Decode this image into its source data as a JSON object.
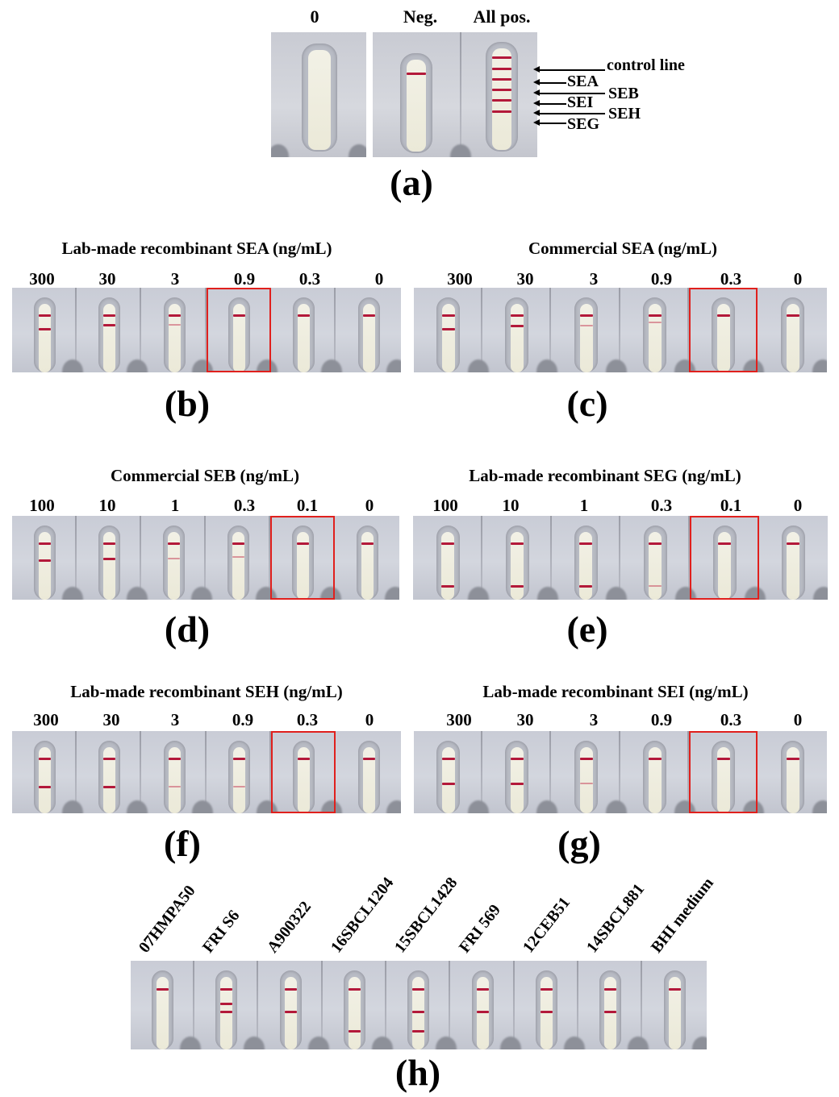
{
  "panel_a": {
    "letter": "(a)",
    "labels": [
      "0",
      "Neg.",
      "All pos."
    ],
    "annotations": {
      "control": "control line",
      "sea": "SEA",
      "seb": "SEB",
      "sei": "SEI",
      "seh": "SEH",
      "seg": "SEG"
    }
  },
  "panel_b": {
    "letter": "(b)",
    "title": "Lab-made recombinant SEA (ng/mL)",
    "concentrations": [
      "300",
      "30",
      "3",
      "0.9",
      "0.3",
      "0"
    ]
  },
  "panel_c": {
    "letter": "(c)",
    "title": "Commercial SEA (ng/mL)",
    "concentrations": [
      "300",
      "30",
      "3",
      "0.9",
      "0.3",
      "0"
    ]
  },
  "panel_d": {
    "letter": "(d)",
    "title": "Commercial SEB (ng/mL)",
    "concentrations": [
      "100",
      "10",
      "1",
      "0.3",
      "0.1",
      "0"
    ]
  },
  "panel_e": {
    "letter": "(e)",
    "title": "Lab-made recombinant SEG (ng/mL)",
    "concentrations": [
      "100",
      "10",
      "1",
      "0.3",
      "0.1",
      "0"
    ]
  },
  "panel_f": {
    "letter": "(f)",
    "title": "Lab-made recombinant SEH (ng/mL)",
    "concentrations": [
      "300",
      "30",
      "3",
      "0.9",
      "0.3",
      "0"
    ]
  },
  "panel_g": {
    "letter": "(g)",
    "title": "Lab-made recombinant SEI (ng/mL)",
    "concentrations": [
      "300",
      "30",
      "3",
      "0.9",
      "0.3",
      "0"
    ]
  },
  "panel_h": {
    "letter": "(h)",
    "samples": [
      "07HMPA50",
      "FRI S6",
      "A900322",
      "16SBCL1204",
      "15SBCL1428",
      "FRI 569",
      "12CEB51",
      "14SBCL881",
      "BHI medium"
    ]
  },
  "colors": {
    "band": "#b3193a",
    "highlight_box": "#e0201d",
    "cassette": "#cfd2da",
    "strip": "#efeee0"
  }
}
